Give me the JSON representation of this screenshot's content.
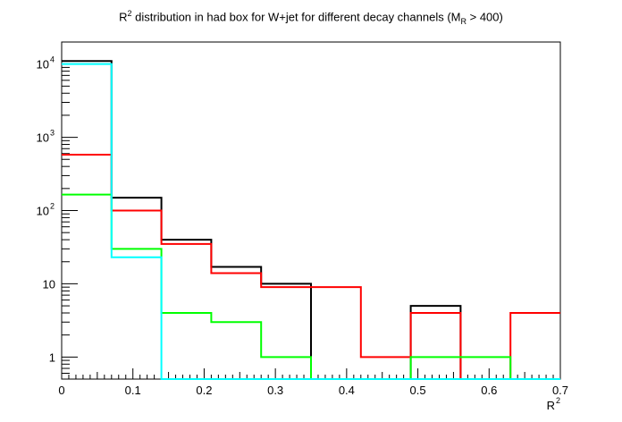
{
  "chart_data": {
    "type": "step-histogram",
    "title_parts": {
      "prefix": "R",
      "prefix_sup": "2",
      "middle": " distribution in had box for W+jet for different decay channels (M",
      "sub": "R",
      "suffix": " > 400)"
    },
    "xlabel": "R",
    "xlabel_sup": "2",
    "ylabel": "",
    "x_scale": "linear",
    "y_scale": "log",
    "xlim": [
      0,
      0.7
    ],
    "ylim": [
      0.5,
      20000
    ],
    "x_ticks": [
      0,
      0.1,
      0.2,
      0.3,
      0.4,
      0.5,
      0.6,
      0.7
    ],
    "x_tick_labels": [
      "0",
      "0.1",
      "0.2",
      "0.3",
      "0.4",
      "0.5",
      "0.6",
      "0.7"
    ],
    "y_ticks": [
      {
        "value": 1,
        "label": "1",
        "sup": ""
      },
      {
        "value": 10,
        "label": "10",
        "sup": ""
      },
      {
        "value": 100,
        "label": "10",
        "sup": "2"
      },
      {
        "value": 1000,
        "label": "10",
        "sup": "3"
      },
      {
        "value": 10000,
        "label": "10",
        "sup": "4"
      }
    ],
    "bin_edges": [
      0,
      0.07,
      0.14,
      0.21,
      0.28,
      0.35,
      0.42,
      0.49,
      0.56,
      0.63,
      0.7
    ],
    "series": [
      {
        "color": "#000000",
        "values": [
          11000,
          150,
          40,
          17,
          10,
          0,
          0,
          5,
          0,
          0
        ]
      },
      {
        "color": "#ff0000",
        "values": [
          580,
          100,
          35,
          14,
          9,
          9,
          1,
          4,
          0,
          4
        ]
      },
      {
        "color": "#00ff00",
        "values": [
          165,
          30,
          4,
          3,
          1,
          0,
          0,
          1,
          1,
          0
        ]
      },
      {
        "color": "#00ffff",
        "values": [
          10000,
          23,
          0,
          0,
          0,
          0,
          0,
          0,
          0,
          0
        ]
      }
    ]
  }
}
